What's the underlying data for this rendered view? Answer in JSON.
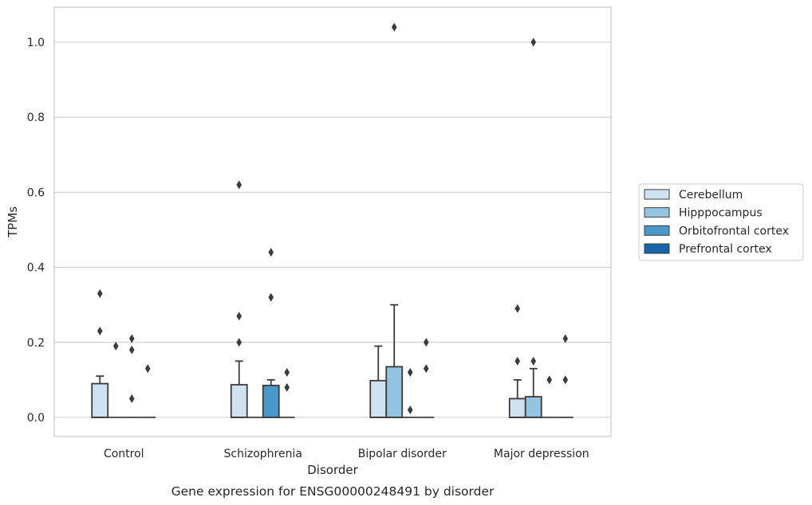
{
  "caption": "Gene expression for ENSG00000248491 by disorder",
  "chart_data": {
    "type": "box",
    "xlabel": "Disorder",
    "ylabel": "TPMs",
    "ylim": [
      -0.05,
      1.09
    ],
    "yticks": [
      "0.0",
      "0.2",
      "0.4",
      "0.6",
      "0.8",
      "1.0"
    ],
    "grid": "horizontal",
    "legend_position": "right",
    "categories": [
      "Control",
      "Schizophrenia",
      "Bipolar disorder",
      "Major depression"
    ],
    "series": [
      {
        "name": "Cerebellum",
        "color": "#d0e1f2",
        "boxes": [
          {
            "q1": 0.0,
            "median": 0.0,
            "q3": 0.09,
            "whisker_low": 0.0,
            "whisker_high": 0.11,
            "outliers": [
              0.33,
              0.23
            ]
          },
          {
            "q1": 0.0,
            "median": 0.0,
            "q3": 0.087,
            "whisker_low": 0.0,
            "whisker_high": 0.15,
            "outliers": [
              0.62,
              0.27,
              0.2
            ]
          },
          {
            "q1": 0.0,
            "median": 0.0,
            "q3": 0.098,
            "whisker_low": 0.0,
            "whisker_high": 0.19,
            "outliers": []
          },
          {
            "q1": 0.0,
            "median": 0.0,
            "q3": 0.05,
            "whisker_low": 0.0,
            "whisker_high": 0.1,
            "outliers": [
              0.29,
              0.15
            ]
          }
        ]
      },
      {
        "name": "Hipppocampus",
        "color": "#94c4df",
        "boxes": [
          {
            "q1": 0.0,
            "median": 0.0,
            "q3": 0.0,
            "whisker_low": 0.0,
            "whisker_high": 0.0,
            "outliers": [
              0.19
            ]
          },
          {
            "q1": 0.0,
            "median": 0.0,
            "q3": 0.0,
            "whisker_low": 0.0,
            "whisker_high": 0.0,
            "outliers": []
          },
          {
            "q1": 0.0,
            "median": 0.0,
            "q3": 0.135,
            "whisker_low": 0.0,
            "whisker_high": 0.3,
            "outliers": [
              1.04
            ]
          },
          {
            "q1": 0.0,
            "median": 0.0,
            "q3": 0.055,
            "whisker_low": 0.0,
            "whisker_high": 0.13,
            "outliers": [
              1.0,
              0.15
            ]
          }
        ]
      },
      {
        "name": "Orbitofrontal cortex",
        "color": "#4a98c9",
        "boxes": [
          {
            "q1": 0.0,
            "median": 0.0,
            "q3": 0.0,
            "whisker_low": 0.0,
            "whisker_high": 0.0,
            "outliers": [
              0.21,
              0.18,
              0.05
            ]
          },
          {
            "q1": 0.0,
            "median": 0.0,
            "q3": 0.085,
            "whisker_low": 0.0,
            "whisker_high": 0.1,
            "outliers": [
              0.44,
              0.32
            ]
          },
          {
            "q1": 0.0,
            "median": 0.0,
            "q3": 0.0,
            "whisker_low": 0.0,
            "whisker_high": 0.0,
            "outliers": [
              0.12,
              0.02
            ]
          },
          {
            "q1": 0.0,
            "median": 0.0,
            "q3": 0.0,
            "whisker_low": 0.0,
            "whisker_high": 0.0,
            "outliers": [
              0.1
            ]
          }
        ]
      },
      {
        "name": "Prefrontal cortex",
        "color": "#1764ab",
        "boxes": [
          {
            "q1": 0.0,
            "median": 0.0,
            "q3": 0.0,
            "whisker_low": 0.0,
            "whisker_high": 0.0,
            "outliers": [
              0.13
            ]
          },
          {
            "q1": 0.0,
            "median": 0.0,
            "q3": 0.0,
            "whisker_low": 0.0,
            "whisker_high": 0.0,
            "outliers": [
              0.12,
              0.08
            ]
          },
          {
            "q1": 0.0,
            "median": 0.0,
            "q3": 0.0,
            "whisker_low": 0.0,
            "whisker_high": 0.0,
            "outliers": [
              0.2,
              0.13
            ]
          },
          {
            "q1": 0.0,
            "median": 0.0,
            "q3": 0.0,
            "whisker_low": 0.0,
            "whisker_high": 0.0,
            "outliers": [
              0.21,
              0.1
            ]
          }
        ]
      }
    ]
  }
}
